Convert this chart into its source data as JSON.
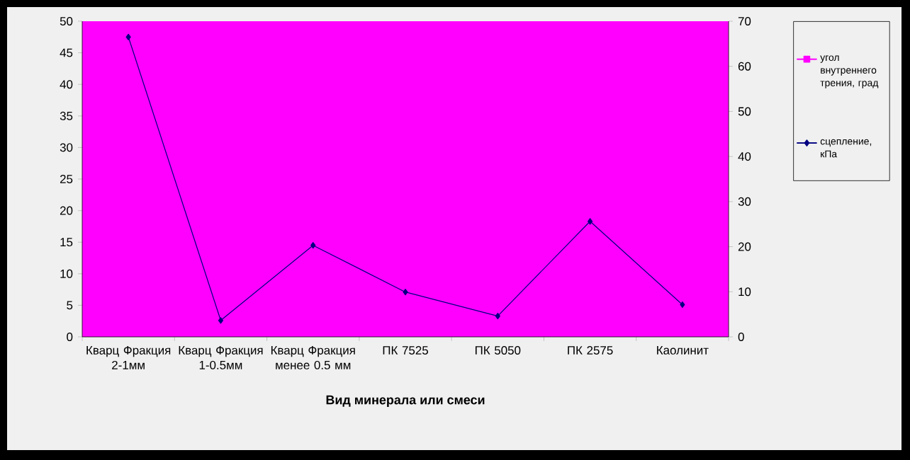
{
  "chart_data": {
    "type": "line",
    "xlabel": "Вид минерала или смеси",
    "categories": [
      "Кварц Фракция 2-1мм",
      "Кварц Фракция 1-0.5мм",
      "Кварц Фракция менее 0.5 мм",
      "ПК 7525",
      "ПК 5050",
      "ПК 2575",
      "Каолинит"
    ],
    "series": [
      {
        "name": "угол внутреннего трения, град",
        "color": "#ff00ff",
        "marker": "square",
        "values": [
          null,
          null,
          null,
          null,
          null,
          null,
          null
        ]
      },
      {
        "name": "сцепление, кПа",
        "color": "#000080",
        "marker": "diamond",
        "values": [
          47.5,
          2.6,
          14.5,
          7.1,
          3.3,
          18.3,
          5.1
        ]
      }
    ],
    "ylim": [
      0,
      50
    ],
    "yticks": [
      0,
      5,
      10,
      15,
      20,
      25,
      30,
      35,
      40,
      45,
      50
    ],
    "y2lim": [
      0,
      70
    ],
    "y2ticks": [
      0,
      10,
      20,
      30,
      40,
      50,
      60,
      70
    ],
    "grid": false,
    "legend": "right"
  }
}
